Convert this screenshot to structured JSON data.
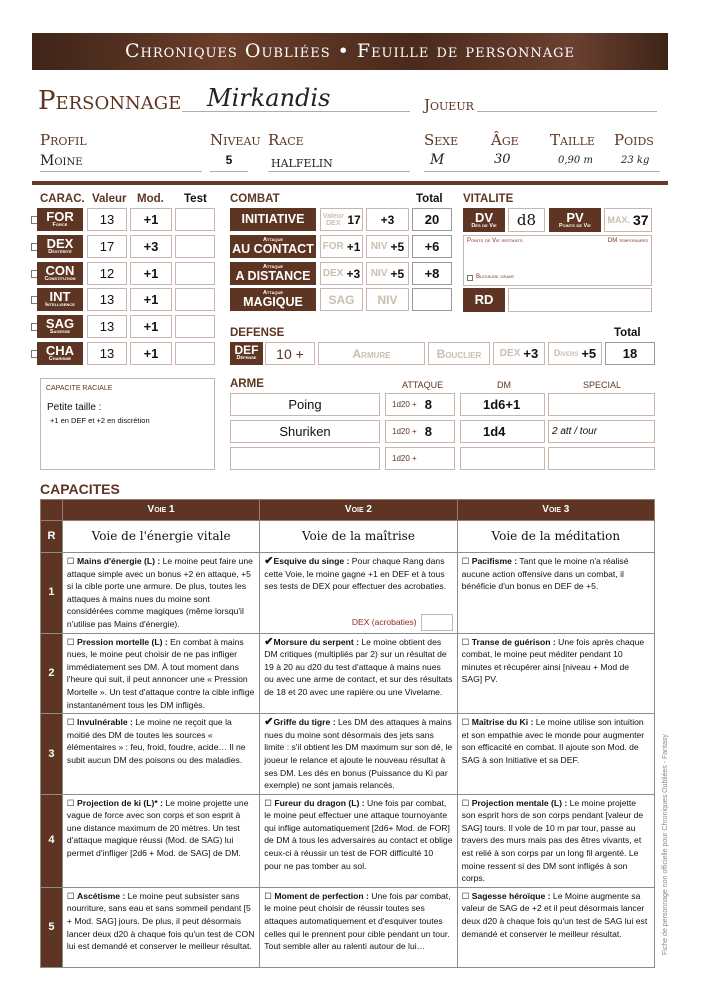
{
  "title": "Chroniques Oubliées • Feuille de personnage",
  "identity": {
    "personnage_label": "Personnage",
    "personnage": "Mirkandis",
    "joueur_label": "Joueur",
    "joueur": "",
    "profil_label": "Profil",
    "profil": "Moine",
    "niveau_label": "Niveau",
    "niveau": "5",
    "race_label": "Race",
    "race": "halfelin",
    "sexe_label": "Sexe",
    "sexe": "M",
    "age_label": "Âge",
    "age": "30",
    "taille_label": "Taille",
    "taille": "0,90 m",
    "poids_label": "Poids",
    "poids": "23 kg"
  },
  "carac": {
    "headers": {
      "carac": "CARAC.",
      "valeur": "Valeur",
      "mod": "Mod.",
      "test": "Test"
    },
    "rows": [
      {
        "abbr": "FOR",
        "name": "Force",
        "value": "13",
        "mod": "+1"
      },
      {
        "abbr": "DEX",
        "name": "Dextérité",
        "value": "17",
        "mod": "+3"
      },
      {
        "abbr": "CON",
        "name": "Constitution",
        "value": "12",
        "mod": "+1"
      },
      {
        "abbr": "INT",
        "name": "Intelligence",
        "value": "13",
        "mod": "+1"
      },
      {
        "abbr": "SAG",
        "name": "Sagesse",
        "value": "13",
        "mod": "+1"
      },
      {
        "abbr": "CHA",
        "name": "Charisme",
        "value": "13",
        "mod": "+1"
      }
    ]
  },
  "combat": {
    "header": "COMBAT",
    "total_label": "Total",
    "rows": [
      {
        "sup": "",
        "label": "INITIATIVE",
        "a_hint": "Valeur DEX",
        "a": "17",
        "b_hint": "",
        "b": "+3",
        "total": "20"
      },
      {
        "sup": "Attaque",
        "label": "AU CONTACT",
        "a_hint": "FOR",
        "a": "+1",
        "b_hint": "NIV",
        "b": "+5",
        "total": "+6"
      },
      {
        "sup": "Attaque",
        "label": "A DISTANCE",
        "a_hint": "DEX",
        "a": "+3",
        "b_hint": "NIV",
        "b": "+5",
        "total": "+8"
      },
      {
        "sup": "Attaque",
        "label": "MAGIQUE",
        "a_hint": "SAG",
        "a": "",
        "b_hint": "NIV",
        "b": "",
        "total": ""
      }
    ]
  },
  "defense": {
    "header": "DEFENSE",
    "total_label": "Total",
    "def": "DEF",
    "def_sub": "Défense",
    "base": "10 +",
    "armure": "Armure",
    "bouclier": "Bouclier",
    "dex_hint": "DEX",
    "dex": "+3",
    "divers_hint": "Divers",
    "divers": "+5",
    "total": "18"
  },
  "vitalite": {
    "header": "VITALITE",
    "dv": "DV",
    "dv_sub": "Dés de Vie",
    "dv_value": "d8",
    "pv": "PV",
    "pv_sub": "Points de Vie",
    "pv_hint": "MAX.",
    "pv_value": "37",
    "restants": "Points de Vie restants",
    "temporaires": "DM temporaires",
    "blessure": "Blessure grave",
    "rd": "RD"
  },
  "racial": {
    "header": "CAPACITE RACIALE",
    "name": "Petite taille :",
    "text": "+1 en DEF et +2 en discrétion"
  },
  "armes": {
    "headers": {
      "arme": "ARME",
      "attaque": "ATTAQUE",
      "dm": "DM",
      "special": "SPECIAL"
    },
    "prefix": "1d20 +",
    "rows": [
      {
        "name": "Poing",
        "attaque": "8",
        "dm": "1d6+1",
        "special": ""
      },
      {
        "name": "Shuriken",
        "attaque": "8",
        "dm": "1d4",
        "special": "2 att / tour"
      },
      {
        "name": "",
        "attaque": "",
        "dm": "",
        "special": ""
      }
    ]
  },
  "capacites": {
    "header": "CAPACITES",
    "r_label": "R",
    "voies": [
      "Voie 1",
      "Voie 2",
      "Voie 3"
    ],
    "voie_names": [
      "Voie de l'énergie vitale",
      "Voie de la maîtrise",
      "Voie de la méditation"
    ],
    "dex_test_label": "DEX (acrobaties)",
    "rows": [
      {
        "rank": "1",
        "cells": [
          {
            "checked": false,
            "name": "Mains d'énergie (L) :",
            "text": " Le moine peut faire une attaque simple avec un bonus +2 en attaque, +5 si la cible porte une armure. De plus, toutes les attaques à mains nues du moine sont considérées comme magiques (même lorsqu'il n'utilise pas Mains d'énergie)."
          },
          {
            "checked": true,
            "name": "Esquive du singe :",
            "text": " Pour chaque Rang dans cette Voie, le moine gagne +1 en DEF et à tous ses tests de DEX pour effectuer des acrobaties."
          },
          {
            "checked": false,
            "name": "Pacifisme :",
            "text": " Tant que le moine n'a réalisé aucune action offensive dans un combat, il bénéficie d'un bonus en DEF de +5."
          }
        ]
      },
      {
        "rank": "2",
        "cells": [
          {
            "checked": false,
            "name": "Pression mortelle (L) :",
            "text": " En combat à mains nues, le moine peut choisir de ne pas infliger immédiatement ses DM. À tout moment dans l'heure qui suit, il peut annoncer une « Pression Mortelle ». Un test d'attaque contre la cible inflige instantanément tous les DM infligés."
          },
          {
            "checked": true,
            "name": "Morsure du serpent :",
            "text": " Le moine obtient des DM critiques (multipliés par 2) sur un résultat de 19 à 20 au d20 du test d'attaque à mains nues ou avec une arme de contact, et sur des résultats de 18 et 20 avec une rapière ou une Vivelame."
          },
          {
            "checked": false,
            "name": "Transe de guérison :",
            "text": " Une fois après chaque combat, le moine peut méditer pendant 10 minutes et récupérer ainsi [niveau + Mod de SAG] PV."
          }
        ]
      },
      {
        "rank": "3",
        "cells": [
          {
            "checked": false,
            "name": "Invulnérable :",
            "text": " Le moine ne reçoit que la moitié des DM de toutes les sources « élémentaires » : feu, froid, foudre, acide… Il ne subit aucun DM des poisons ou des maladies."
          },
          {
            "checked": true,
            "name": "Griffe du tigre :",
            "text": " Les DM des attaques à mains nues du moine sont désormais des jets sans limite : s'il obtient les DM maximum sur son dé, le joueur le relance et ajoute le nouveau résultat à ses DM. Les dés en bonus (Puissance du Ki par exemple) ne sont jamais relancés."
          },
          {
            "checked": false,
            "name": "Maîtrise du Ki :",
            "text": " Le moine utilise son intuition et son empathie avec le monde pour augmenter son efficacité en combat. Il ajoute son Mod. de SAG à son Initiative et sa DEF."
          }
        ]
      },
      {
        "rank": "4",
        "cells": [
          {
            "checked": false,
            "name": "Projection de ki (L)* :",
            "text": " Le moine projette une vague de force avec son corps et son esprit à une distance maximum de 20 mètres. Un test d'attaque magique réussi (Mod. de SAG) lui permet d'infliger [2d6 + Mod. de SAG] de DM."
          },
          {
            "checked": false,
            "name": "Fureur du dragon (L) :",
            "text": " Une fois par combat, le moine peut effectuer une attaque tournoyante qui inflige automatiquement [2d6+ Mod. de FOR] de DM à tous les adversaires au contact et oblige ceux-ci à réussir un test de FOR difficulté 10 pour ne pas tomber au sol."
          },
          {
            "checked": false,
            "name": "Projection mentale (L) :",
            "text": " Le moine projette son esprit hors de son corps pendant [valeur de SAG] tours. Il vole de 10 m par tour, passe au travers des murs mais pas des êtres vivants, et est relié à son corps par un long fil argenté. Le moine ressent si des DM sont infligés à son corps."
          }
        ]
      },
      {
        "rank": "5",
        "cells": [
          {
            "checked": false,
            "name": "Ascétisme :",
            "text": " Le moine peut subsister sans nourriture, sans eau et sans sommeil pendant [5 + Mod. SAG] jours. De plus, il peut désormais lancer deux d20 à chaque fois qu'un test de CON lui est demandé et conserver le meilleur résultat."
          },
          {
            "checked": false,
            "name": "Moment de perfection :",
            "text": " Une fois par combat, le moine peut choisir de réussir toutes ses attaques automatiquement et d'esquiver toutes celles qui le prennent pour cible pendant un tour. Tout semble aller au ralenti autour de lui…"
          },
          {
            "checked": false,
            "name": "Sagesse héroïque :",
            "text": " Le Moine augmente sa valeur de SAG de +2 et il peut désormais lancer deux d20 à chaque fois qu'un test de SAG lui est demandé et conserver le meilleur résultat."
          }
        ]
      }
    ]
  },
  "footer_note": "Fiche de personnage non officielle pour Chroniques Oubliées - Fantasy",
  "colors": {
    "brand": "#5e3522",
    "cell_border": "#c9b5ae"
  }
}
